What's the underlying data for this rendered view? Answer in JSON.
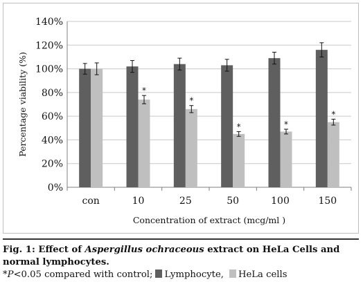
{
  "chart_data": {
    "type": "bar",
    "title": "",
    "xlabel": "Concentration of extract (mcg/ml )",
    "ylabel": "Percentage viability (%)",
    "categories": [
      "con",
      "10",
      "25",
      "50",
      "100",
      "150"
    ],
    "yticks": [
      "0%",
      "20%",
      "40%",
      "60%",
      "80%",
      "100%",
      "120%",
      "140%"
    ],
    "ylim": [
      0,
      140
    ],
    "grid": true,
    "series": [
      {
        "name": "Lymphocyte",
        "color": "#5f5f5f",
        "values": [
          100,
          102,
          104,
          103,
          109,
          116
        ],
        "errors": [
          4.5,
          5,
          5,
          5,
          5,
          6
        ]
      },
      {
        "name": "HeLa cells",
        "color": "#bfbfbf",
        "values": [
          100,
          74,
          66,
          45,
          47,
          55
        ],
        "errors": [
          5,
          3.5,
          3,
          2,
          2,
          2.5
        ],
        "significance": [
          "",
          "*",
          "*",
          "*",
          "*",
          "*"
        ]
      }
    ]
  },
  "caption": {
    "fig_label": "Fig. 1:",
    "line1_pre": " Effect of ",
    "species": "Aspergillus ochraceous",
    "line1_post": " extract on HeLa Cells and",
    "line2": "normal lymphocytes.",
    "line3_star": "*",
    "line3_p": "P",
    "line3_text": "<0.05 compared with control;",
    "legend_lymph": "Lymphocyte,",
    "legend_hela": "HeLa cells"
  }
}
